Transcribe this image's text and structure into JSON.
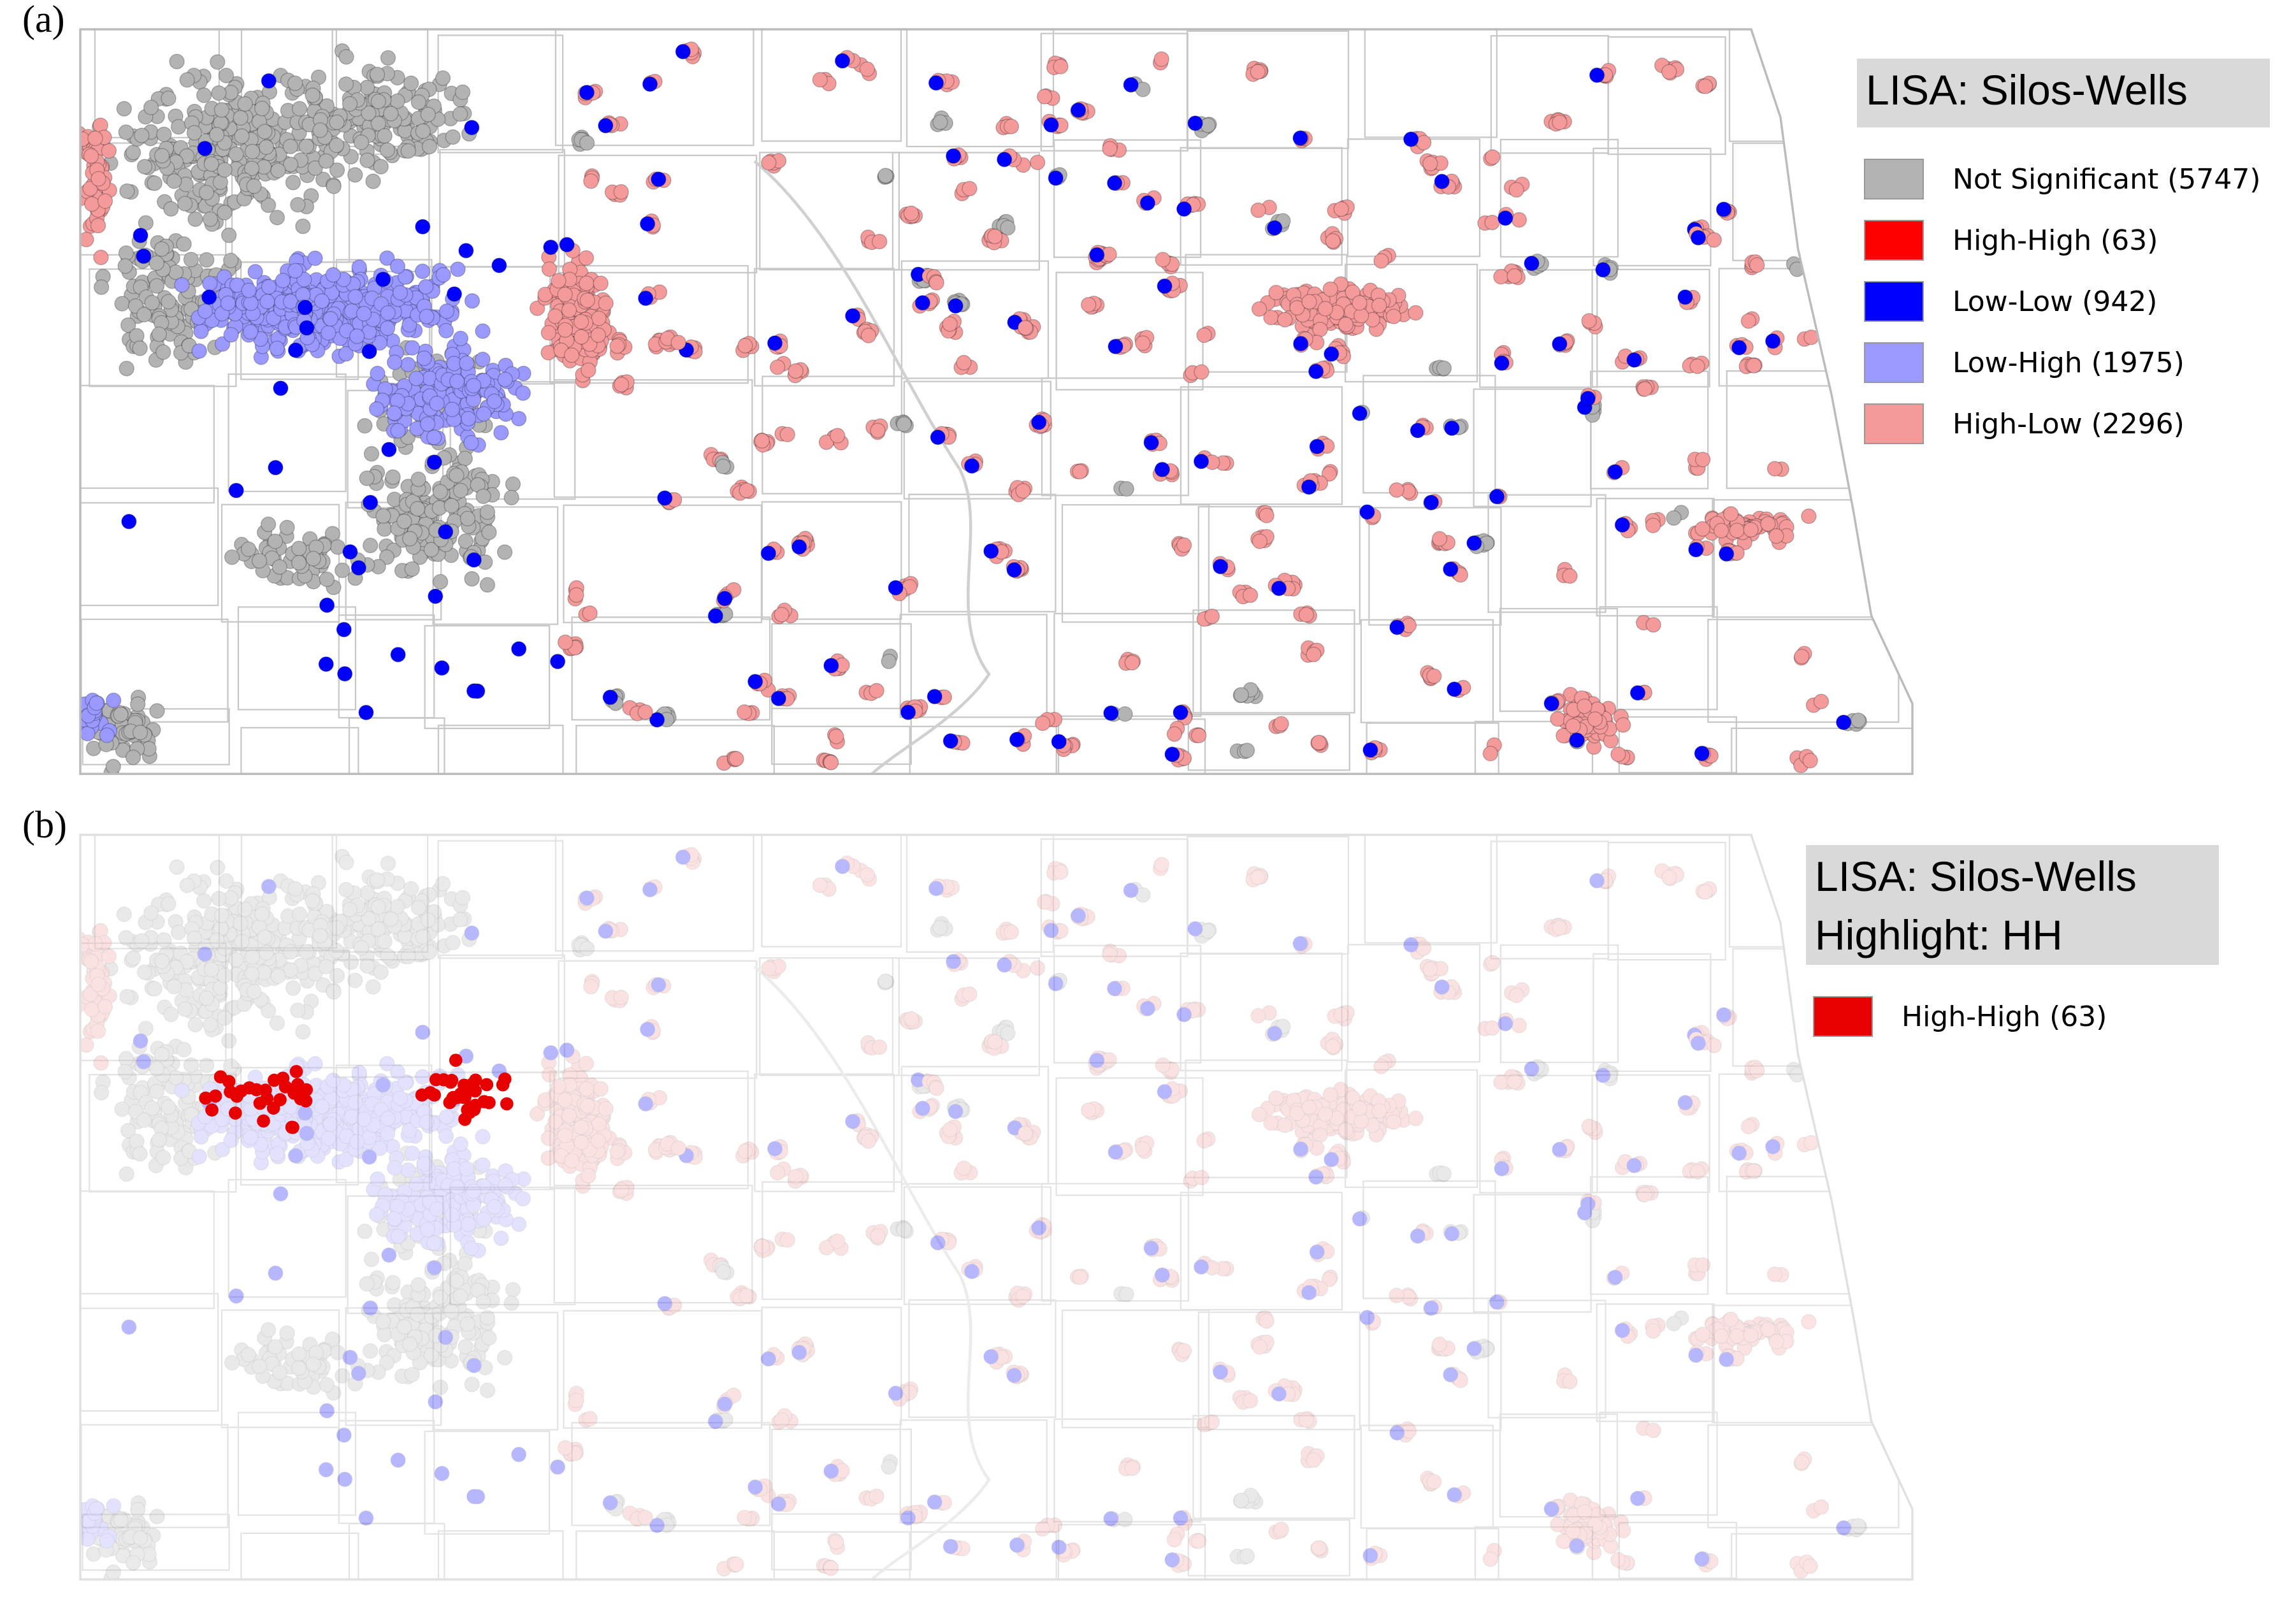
{
  "panels": [
    {
      "label": "(a)",
      "legend": {
        "title": [
          "LISA: Silos-Wells"
        ],
        "items": [
          {
            "label": "Not Significant (5747)",
            "color": "#b3b3b3"
          },
          {
            "label": "High-High (63)",
            "color": "#ff0000"
          },
          {
            "label": "Low-Low (942)",
            "color": "#0000ff"
          },
          {
            "label": "Low-High (1975)",
            "color": "#9999ff"
          },
          {
            "label": "High-Low (2296)",
            "color": "#f49a9a"
          }
        ]
      }
    },
    {
      "label": "(b)",
      "legend": {
        "title": [
          "LISA: Silos-Wells",
          "Highlight: HH"
        ],
        "items": [
          {
            "label": "High-High (63)",
            "color": "#e60000"
          }
        ]
      }
    }
  ]
}
